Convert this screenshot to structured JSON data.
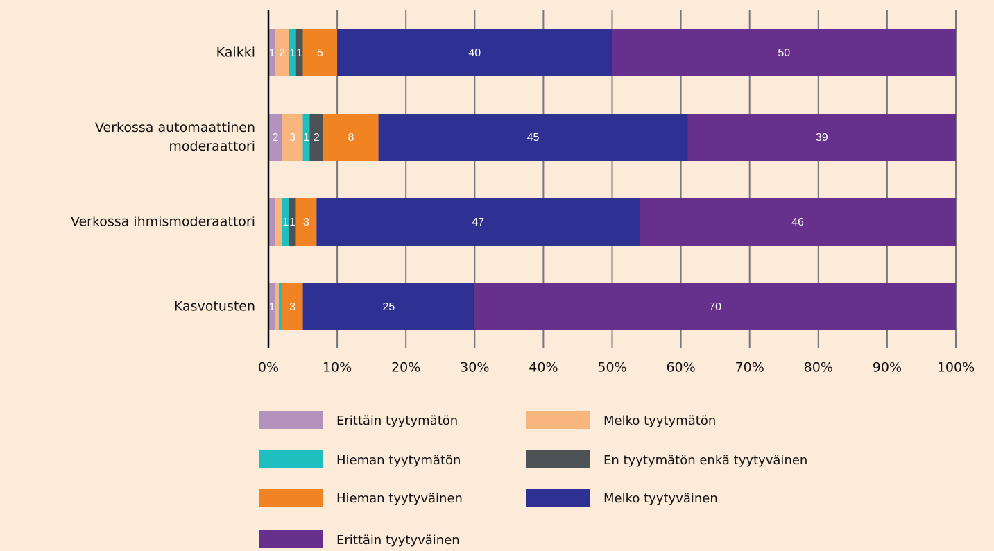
{
  "chart_data": {
    "type": "stacked_barh",
    "categories": [
      "Kaikki",
      "Verkossa automaattinen moderaattori",
      "Verkossa ihmismoderaattori",
      "Kasvotusten"
    ],
    "series": [
      {
        "name": "Erittäin tyytymätön",
        "color": "#b393bd",
        "values": [
          1,
          2,
          1,
          1
        ],
        "value_labels": [
          "1",
          "2",
          null,
          "1"
        ]
      },
      {
        "name": "Melko tyytymätön",
        "color": "#f8b57e",
        "values": [
          2,
          3,
          1,
          0.5
        ],
        "value_labels": [
          "2",
          "3",
          null,
          null
        ]
      },
      {
        "name": "Hieman tyytymätön",
        "color": "#1fbfbf",
        "values": [
          1,
          1,
          1,
          0.5
        ],
        "value_labels": [
          "1",
          "1",
          "1",
          null
        ]
      },
      {
        "name": "En tyytymätön enkä tyytyväinen",
        "color": "#4d5257",
        "values": [
          1,
          2,
          1,
          0
        ],
        "value_labels": [
          "1",
          "2",
          "1",
          null
        ]
      },
      {
        "name": "Hieman tyytyväinen",
        "color": "#f28322",
        "values": [
          5,
          8,
          3,
          3
        ],
        "value_labels": [
          "5",
          "8",
          "3",
          "3"
        ]
      },
      {
        "name": "Melko tyytyväinen",
        "color": "#2e3192",
        "values": [
          40,
          45,
          47,
          25
        ],
        "value_labels": [
          "40",
          "45",
          "47",
          "25"
        ]
      },
      {
        "name": "Erittäin tyytyväinen",
        "color": "#66308c",
        "values": [
          50,
          39,
          46,
          70
        ],
        "value_labels": [
          "50",
          "39",
          "46",
          "70"
        ]
      }
    ],
    "xlim": [
      0,
      100
    ],
    "xticks": [
      {
        "value": 0,
        "label": "0%"
      },
      {
        "value": 10,
        "label": "10%"
      },
      {
        "value": 20,
        "label": "20%"
      },
      {
        "value": 30,
        "label": "30%"
      },
      {
        "value": 40,
        "label": "40%"
      },
      {
        "value": 50,
        "label": "50%"
      },
      {
        "value": 60,
        "label": "60%"
      },
      {
        "value": 70,
        "label": "70%"
      },
      {
        "value": 80,
        "label": "80%"
      },
      {
        "value": 90,
        "label": "90%"
      },
      {
        "value": 100,
        "label": "100%"
      }
    ],
    "grid": true,
    "legend": "bottom"
  }
}
